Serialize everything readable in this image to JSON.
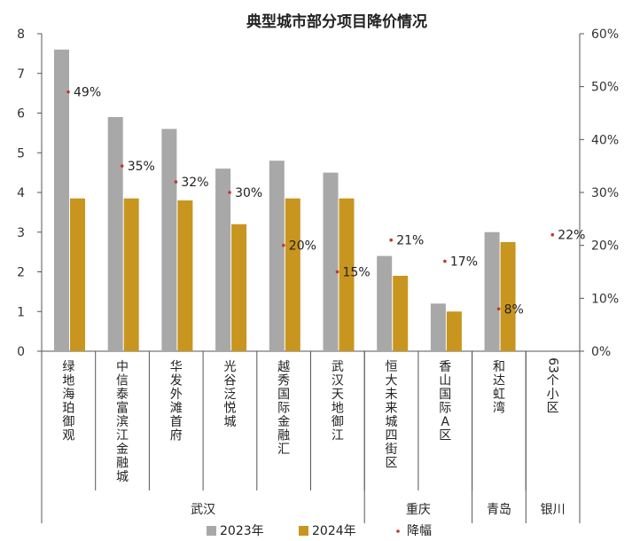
{
  "chart_data": {
    "type": "bar",
    "title": "典型城市部分项目降价情况",
    "categories": [
      "绿地海珀御观",
      "中信泰富滨江金融城",
      "华发外滩首府",
      "光谷泛悦城",
      "越秀国际金融汇",
      "武汉天地御江",
      "恒大未来城四街区",
      "香山国际A区",
      "和达虹湾",
      "63个小区"
    ],
    "category_display": [
      [
        "绿",
        "地",
        "海",
        "珀",
        "御",
        "观"
      ],
      [
        "中",
        "信",
        "泰",
        "富",
        "滨",
        "江",
        "金",
        "融",
        "城"
      ],
      [
        "华",
        "发",
        "外",
        "滩",
        "首",
        "府"
      ],
      [
        "光",
        "谷",
        "泛",
        "悦",
        "城"
      ],
      [
        "越",
        "秀",
        "国",
        "际",
        "金",
        "融",
        "汇"
      ],
      [
        "武",
        "汉",
        "天",
        "地",
        "御",
        "江"
      ],
      [
        "恒",
        "大",
        "未",
        "来",
        "城",
        "四",
        "街",
        "区"
      ],
      [
        "香",
        "山",
        "国",
        "际",
        "A",
        "区"
      ],
      [
        "和",
        "达",
        "虹",
        "湾"
      ],
      [
        "63",
        "个",
        "小",
        "区"
      ]
    ],
    "groups": [
      {
        "name": "武汉",
        "count": 6
      },
      {
        "name": "重庆",
        "count": 2
      },
      {
        "name": "青岛",
        "count": 1
      },
      {
        "name": "银川",
        "count": 1
      }
    ],
    "series": [
      {
        "name": "2023年",
        "color": "#a8a8a8",
        "values": [
          7.6,
          5.9,
          5.6,
          4.6,
          4.8,
          4.5,
          2.4,
          1.2,
          3.0,
          null
        ]
      },
      {
        "name": "2024年",
        "color": "#c8961e",
        "values": [
          3.85,
          3.85,
          3.8,
          3.2,
          3.85,
          3.85,
          1.9,
          1.0,
          2.75,
          null
        ]
      },
      {
        "name": "降幅",
        "color": "#c0392b",
        "axis": "right",
        "marker": "dot",
        "values": [
          49,
          35,
          32,
          30,
          20,
          15,
          21,
          17,
          8,
          22
        ],
        "labels": [
          "49%",
          "35%",
          "32%",
          "30%",
          "20%",
          "15%",
          "21%",
          "17%",
          "8%",
          "22%"
        ]
      }
    ],
    "ylim": [
      0,
      8
    ],
    "yticks": [
      "0",
      "1",
      "2",
      "3",
      "4",
      "5",
      "6",
      "7",
      "8"
    ],
    "y2lim": [
      0,
      60
    ],
    "y2ticks": [
      "0%",
      "10%",
      "20%",
      "30%",
      "40%",
      "50%",
      "60%"
    ],
    "legend_position": "bottom",
    "grid": false
  }
}
